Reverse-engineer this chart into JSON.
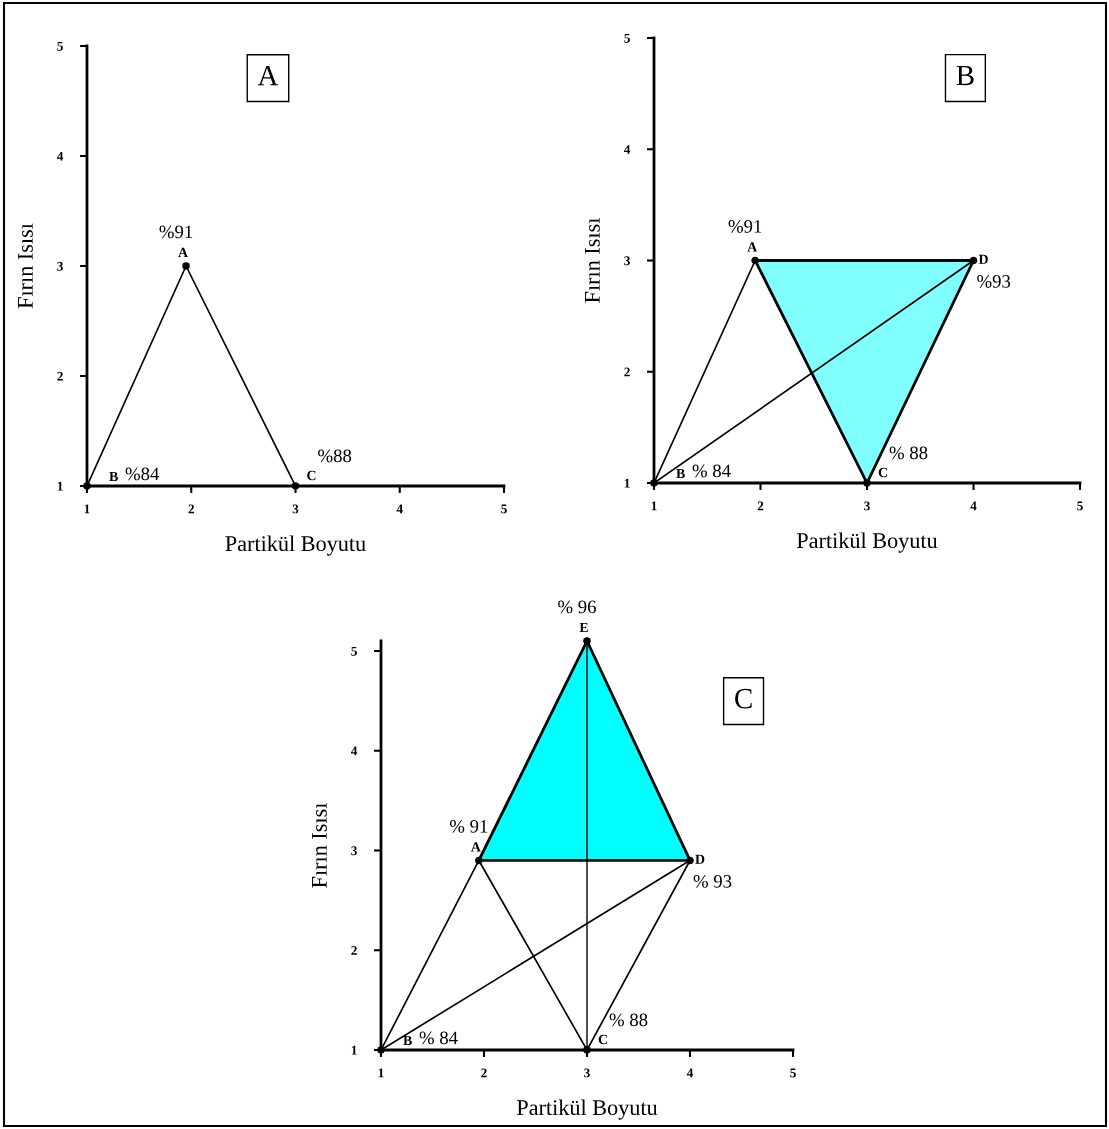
{
  "chart_data": [
    {
      "type": "line",
      "title": "A",
      "xlabel": "Partikül Boyutu",
      "ylabel": "Fırın Isısı",
      "xlim": [
        1,
        5
      ],
      "ylim": [
        1,
        5
      ],
      "xticks": [
        1,
        2,
        3,
        4,
        5
      ],
      "yticks": [
        1,
        2,
        3,
        4,
        5
      ],
      "series": [
        {
          "color": "#000000",
          "x": [
            1,
            1.95,
            3
          ],
          "values": [
            1,
            3,
            1
          ]
        },
        {
          "type": "scatter",
          "marker": "circle",
          "color": "#000000",
          "x": [
            1.95,
            1,
            3
          ],
          "values": [
            3,
            1,
            1
          ]
        }
      ],
      "annotations": [
        {
          "text": "A",
          "x": 1.95,
          "y": 3
        },
        {
          "text": "%91",
          "x": 1.95,
          "y": 3
        },
        {
          "text": "B",
          "x": 1,
          "y": 1
        },
        {
          "text": "%84",
          "x": 1,
          "y": 1
        },
        {
          "text": "C",
          "x": 3,
          "y": 1
        },
        {
          "text": "%88",
          "x": 3,
          "y": 1
        }
      ]
    },
    {
      "type": "line",
      "title": "B",
      "xlabel": "Partikül Boyutu",
      "ylabel": "Fırın Isısı",
      "xlim": [
        1,
        5
      ],
      "ylim": [
        1,
        5
      ],
      "xticks": [
        1,
        2,
        3,
        4,
        5
      ],
      "yticks": [
        1,
        2,
        3,
        4,
        5
      ],
      "series": [
        {
          "type": "area",
          "color": "#80ffff",
          "x": [
            1.95,
            4,
            3
          ],
          "values": [
            3,
            3,
            1
          ]
        },
        {
          "color": "#000000",
          "x": [
            1,
            1.95
          ],
          "values": [
            1,
            3
          ]
        },
        {
          "color": "#000000",
          "x": [
            1,
            4
          ],
          "values": [
            1,
            3
          ]
        },
        {
          "type": "scatter",
          "marker": "circle",
          "color": "#000000",
          "x": [
            1.95,
            1,
            3,
            4
          ],
          "values": [
            3,
            1,
            1,
            3
          ]
        }
      ],
      "annotations": [
        {
          "text": "A",
          "x": 1.95,
          "y": 3
        },
        {
          "text": "%91",
          "x": 1.95,
          "y": 3
        },
        {
          "text": "B",
          "x": 1,
          "y": 1
        },
        {
          "text": "% 84",
          "x": 1,
          "y": 1
        },
        {
          "text": "C",
          "x": 3,
          "y": 1
        },
        {
          "text": "% 88",
          "x": 3,
          "y": 1
        },
        {
          "text": "D",
          "x": 4,
          "y": 3
        },
        {
          "text": "%93",
          "x": 4,
          "y": 3
        }
      ]
    },
    {
      "type": "line",
      "title": "C",
      "xlabel": "Partikül Boyutu",
      "ylabel": "Fırın Isısı",
      "xlim": [
        1,
        5
      ],
      "ylim": [
        1,
        5.1
      ],
      "xticks": [
        1,
        2,
        3,
        4,
        5
      ],
      "yticks": [
        1,
        2,
        3,
        4,
        5
      ],
      "series": [
        {
          "type": "area",
          "color": "#00ffff",
          "x": [
            3,
            1.95,
            4
          ],
          "values": [
            5.1,
            2.9,
            2.9
          ]
        },
        {
          "color": "#000000",
          "x": [
            1,
            1.95,
            3,
            4
          ],
          "values": [
            1,
            2.9,
            1,
            2.9
          ]
        },
        {
          "color": "#000000",
          "x": [
            1,
            4
          ],
          "values": [
            1,
            2.9
          ]
        },
        {
          "type": "scatter",
          "marker": "circle",
          "color": "#000000",
          "x": [
            1.95,
            1,
            3,
            4,
            3
          ],
          "values": [
            2.9,
            1,
            1,
            2.9,
            5.1
          ]
        }
      ],
      "ref_lines": [
        {
          "axis": "x",
          "value": 3,
          "color": "#000000"
        }
      ],
      "annotations": [
        {
          "text": "A",
          "x": 1.95,
          "y": 2.9
        },
        {
          "text": "% 91",
          "x": 1.95,
          "y": 2.9
        },
        {
          "text": "B",
          "x": 1,
          "y": 1
        },
        {
          "text": "% 84",
          "x": 1,
          "y": 1
        },
        {
          "text": "C",
          "x": 3,
          "y": 1
        },
        {
          "text": "% 88",
          "x": 3,
          "y": 1
        },
        {
          "text": "D",
          "x": 4,
          "y": 2.9
        },
        {
          "text": "% 93",
          "x": 4,
          "y": 2.9
        },
        {
          "text": "E",
          "x": 3,
          "y": 5.1
        },
        {
          "text": "% 96",
          "x": 3,
          "y": 5.1
        }
      ]
    }
  ]
}
